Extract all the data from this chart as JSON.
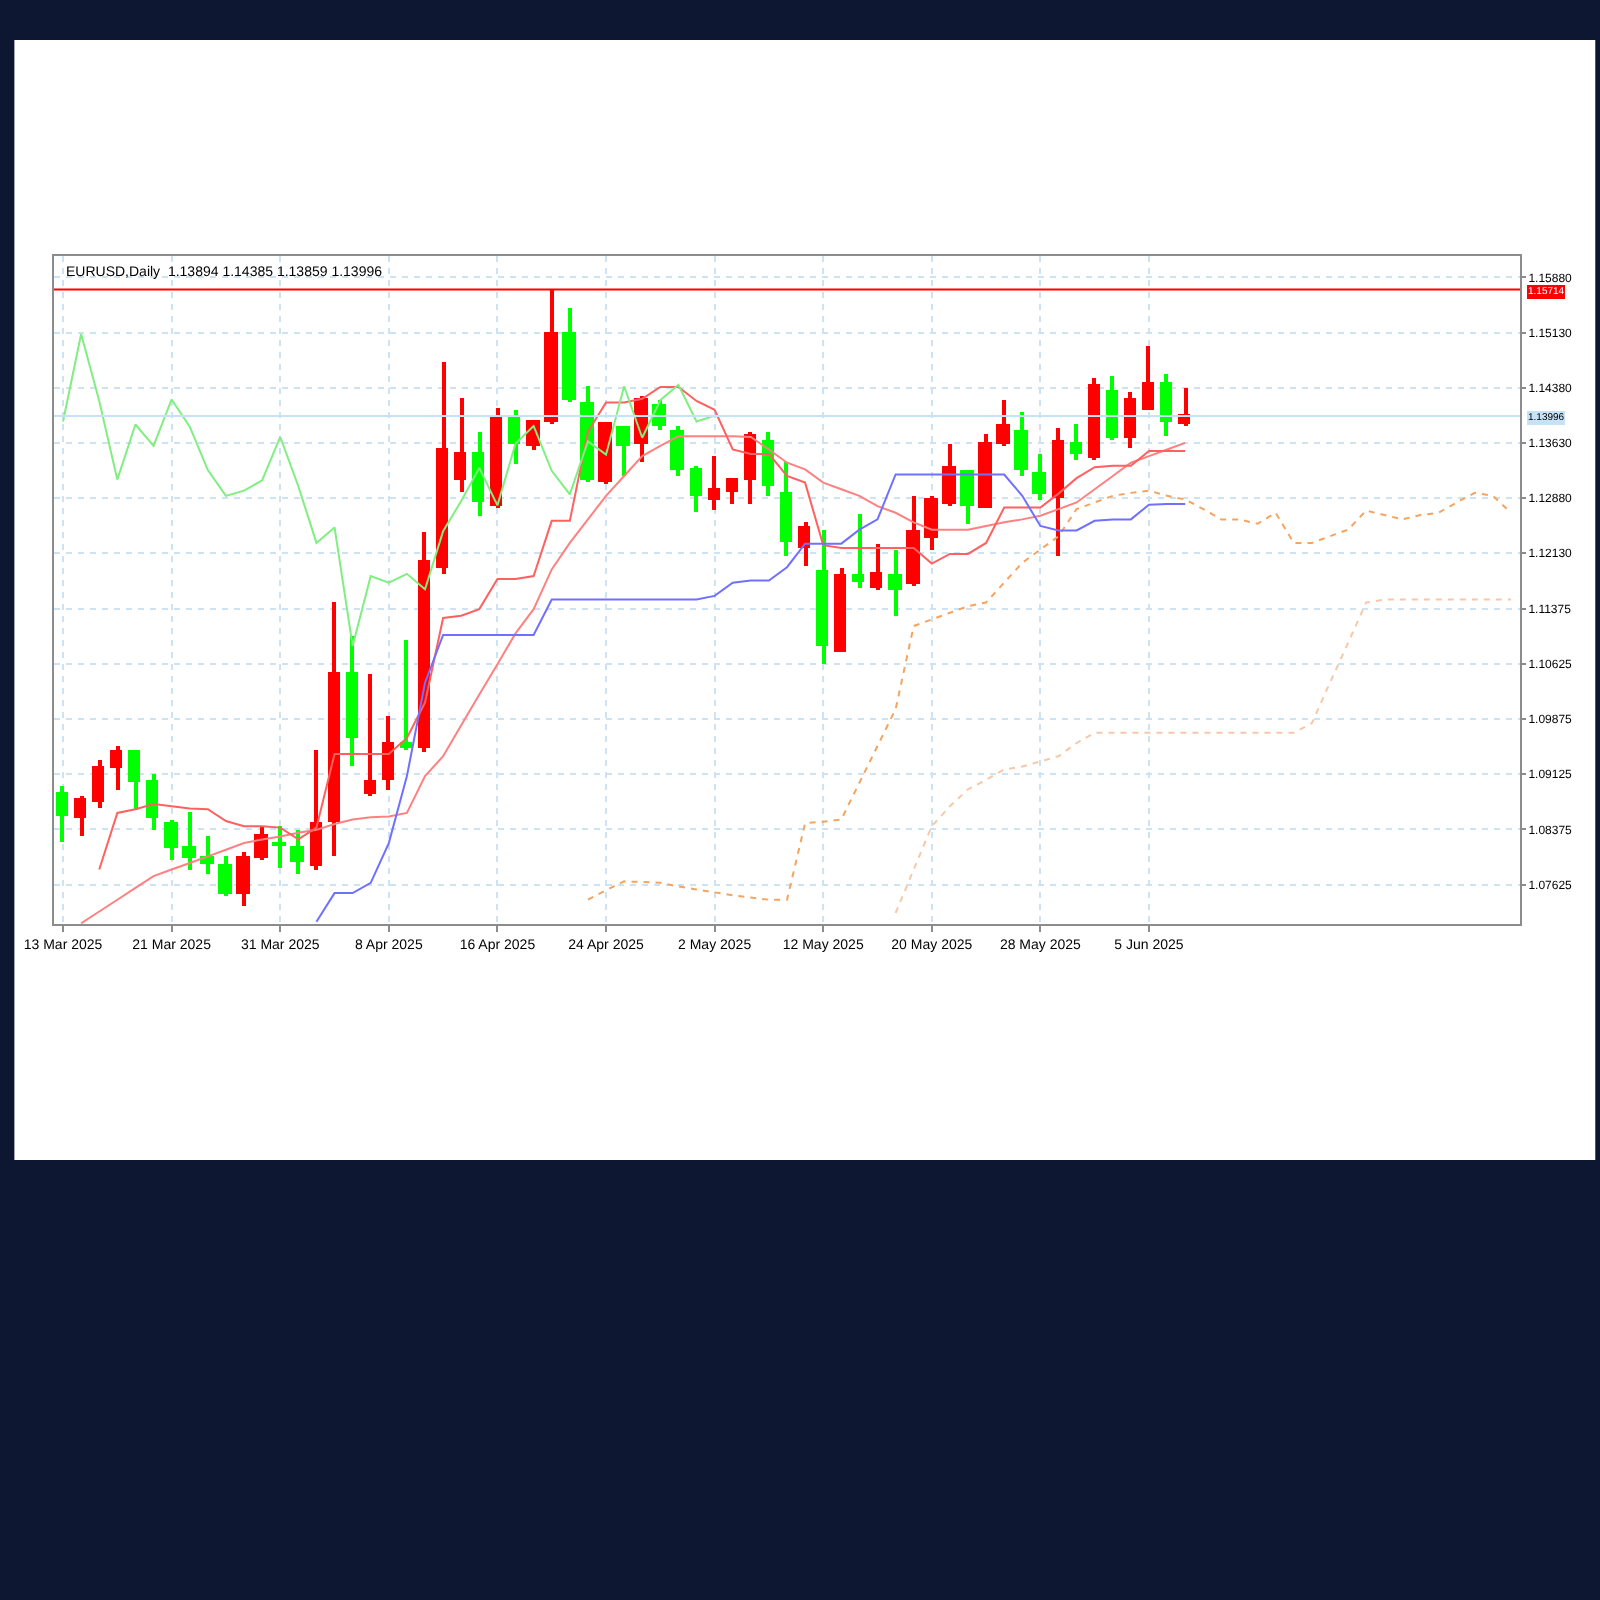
{
  "chart_data": {
    "type": "candlestick",
    "title": "EURUSD,Daily  1.13894 1.14385 1.13859 1.13996",
    "categories": [
      "13 Mar 2025",
      null,
      null,
      null,
      null,
      null,
      "21 Mar 2025",
      null,
      null,
      null,
      null,
      null,
      "31 Mar 2025",
      null,
      null,
      null,
      null,
      null,
      "8 Apr 2025",
      null,
      null,
      null,
      null,
      null,
      "16 Apr 2025",
      null,
      null,
      null,
      null,
      null,
      "24 Apr 2025",
      null,
      null,
      null,
      null,
      null,
      "2 May 2025",
      null,
      null,
      null,
      null,
      null,
      "12 May 2025",
      null,
      null,
      null,
      null,
      null,
      "20 May 2025",
      null,
      null,
      null,
      null,
      null,
      "28 May 2025",
      null,
      null,
      null,
      null,
      null,
      "5 Jun 2025",
      null,
      null,
      null,
      null,
      null,
      null,
      null,
      null,
      null,
      null,
      null,
      null,
      null,
      null,
      null,
      null,
      null,
      null,
      null,
      null
    ],
    "ohlc": [
      [
        1.0887,
        1.0896,
        1.0821,
        1.0855
      ],
      [
        1.0853,
        1.0883,
        1.0828,
        1.0878
      ],
      [
        1.0875,
        1.0933,
        1.0866,
        1.0921
      ],
      [
        1.0921,
        1.0951,
        1.0892,
        1.0944
      ],
      [
        1.0943,
        1.0946,
        1.0865,
        1.0901
      ],
      [
        1.0901,
        1.0914,
        1.0837,
        1.0854
      ],
      [
        1.0846,
        1.0851,
        1.0797,
        1.0812
      ],
      [
        1.0812,
        1.086,
        1.0783,
        1.0799
      ],
      [
        1.0799,
        1.0828,
        1.0778,
        1.079
      ],
      [
        1.0789,
        1.0801,
        1.0747,
        1.075
      ],
      [
        1.0751,
        1.0806,
        1.0733,
        1.0799
      ],
      [
        1.08,
        1.0842,
        1.0797,
        1.0828
      ],
      [
        1.0819,
        1.0842,
        1.0785,
        1.0815
      ],
      [
        1.0813,
        1.0837,
        1.0778,
        1.0792
      ],
      [
        1.0789,
        1.0946,
        1.0783,
        1.0844
      ],
      [
        1.0848,
        1.1146,
        1.0801,
        1.105
      ],
      [
        1.105,
        1.11,
        1.0923,
        1.0962
      ],
      [
        1.0885,
        1.105,
        1.0883,
        1.0903
      ],
      [
        1.0904,
        1.0992,
        1.0892,
        1.0953
      ],
      [
        1.0953,
        1.1096,
        1.0946,
        1.0949
      ],
      [
        1.0948,
        1.1241,
        1.0942,
        1.12
      ],
      [
        1.1194,
        1.1472,
        1.1184,
        1.1354
      ],
      [
        1.1313,
        1.1424,
        1.1295,
        1.1348
      ],
      [
        1.1348,
        1.1379,
        1.1264,
        1.1282
      ],
      [
        1.1277,
        1.1411,
        1.1275,
        1.1397
      ],
      [
        1.1397,
        1.1409,
        1.1333,
        1.1361
      ],
      [
        1.136,
        1.1395,
        1.1354,
        1.1392
      ],
      [
        1.1392,
        1.1571,
        1.139,
        1.1511
      ],
      [
        1.1511,
        1.1547,
        1.1418,
        1.142
      ],
      [
        1.1415,
        1.1439,
        1.1309,
        1.1313
      ],
      [
        1.1309,
        1.1392,
        1.1306,
        1.1388
      ],
      [
        1.1382,
        1.1383,
        1.1318,
        1.1359
      ],
      [
        1.1361,
        1.1427,
        1.1336,
        1.1422
      ],
      [
        1.1414,
        1.1422,
        1.138,
        1.1385
      ],
      [
        1.1379,
        1.1386,
        1.1318,
        1.1326
      ],
      [
        1.1327,
        1.1332,
        1.1268,
        1.1291
      ],
      [
        1.1284,
        1.1345,
        1.1273,
        1.1298
      ],
      [
        1.1297,
        1.1313,
        1.128,
        1.1312
      ],
      [
        1.1313,
        1.1377,
        1.128,
        1.1371
      ],
      [
        1.1363,
        1.1377,
        1.1291,
        1.1304
      ],
      [
        1.1294,
        1.1336,
        1.1209,
        1.1227
      ],
      [
        1.1221,
        1.1255,
        1.1196,
        1.1248
      ],
      [
        1.1188,
        1.1244,
        1.1062,
        1.1087
      ],
      [
        1.1079,
        1.1194,
        1.1079,
        1.1182
      ],
      [
        1.1182,
        1.1265,
        1.1166,
        1.1173
      ],
      [
        1.1166,
        1.1225,
        1.1164,
        1.1185
      ],
      [
        1.1182,
        1.1218,
        1.1129,
        1.1164
      ],
      [
        1.1171,
        1.1291,
        1.1168,
        1.1243
      ],
      [
        1.1234,
        1.1291,
        1.1218,
        1.1284
      ],
      [
        1.128,
        1.1362,
        1.1277,
        1.1329
      ],
      [
        1.1323,
        1.1327,
        1.1253,
        1.1278
      ],
      [
        1.1275,
        1.1375,
        1.1275,
        1.1362
      ],
      [
        1.1361,
        1.142,
        1.1359,
        1.1386
      ],
      [
        1.1379,
        1.1406,
        1.1318,
        1.1325
      ],
      [
        1.1321,
        1.1347,
        1.1284,
        1.1293
      ],
      [
        1.1289,
        1.1382,
        1.1209,
        1.1365
      ],
      [
        1.1362,
        1.1389,
        1.1341,
        1.1347
      ],
      [
        1.1343,
        1.145,
        1.1341,
        1.144
      ],
      [
        1.1431,
        1.1454,
        1.1368,
        1.137
      ],
      [
        1.137,
        1.1431,
        1.1356,
        1.1421
      ],
      [
        1.1409,
        1.1495,
        1.1407,
        1.1442
      ],
      [
        1.1442,
        1.1456,
        1.1371,
        1.1392
      ],
      [
        1.13894,
        1.14385,
        1.13859,
        1.13996
      ],
      null,
      null,
      null,
      null,
      null,
      null,
      null,
      null,
      null,
      null,
      null,
      null,
      null,
      null,
      null,
      null,
      null,
      null
    ],
    "colors": [
      "#00ff00",
      "#ff0000",
      "#ff0000",
      "#ff0000",
      "#00ff00",
      "#00ff00",
      "#00ff00",
      "#00ff00",
      "#00ff00",
      "#00ff00",
      "#ff0000",
      "#ff0000",
      "#00ff00",
      "#00ff00",
      "#ff0000",
      "#ff0000",
      "#00ff00",
      "#ff0000",
      "#ff0000",
      "#00ff00",
      "#ff0000",
      "#ff0000",
      "#ff0000",
      "#00ff00",
      "#ff0000",
      "#00ff00",
      "#ff0000",
      "#ff0000",
      "#00ff00",
      "#00ff00",
      "#ff0000",
      "#00ff00",
      "#ff0000",
      "#00ff00",
      "#00ff00",
      "#00ff00",
      "#ff0000",
      "#ff0000",
      "#ff0000",
      "#00ff00",
      "#00ff00",
      "#ff0000",
      "#00ff00",
      "#ff0000",
      "#00ff00",
      "#ff0000",
      "#00ff00",
      "#ff0000",
      "#ff0000",
      "#ff0000",
      "#00ff00",
      "#ff0000",
      "#ff0000",
      "#00ff00",
      "#00ff00",
      "#ff0000",
      "#00ff00",
      "#ff0000",
      "#00ff00",
      "#ff0000",
      "#ff0000",
      "#00ff00",
      "#ff0000",
      null,
      null,
      null,
      null,
      null,
      null,
      null,
      null,
      null,
      null,
      null,
      null,
      null,
      null,
      null,
      null,
      null,
      null
    ],
    "series": [
      {
        "type": "line",
        "color": "#f4a460",
        "line_style": "dotted",
        "values": [
          null,
          null,
          null,
          null,
          null,
          null,
          null,
          null,
          null,
          null,
          null,
          null,
          null,
          null,
          null,
          null,
          null,
          null,
          null,
          null,
          null,
          null,
          null,
          null,
          null,
          null,
          null,
          null,
          null,
          1.0742,
          1.0755,
          1.0767,
          1.0766,
          1.0765,
          1.076,
          1.0756,
          1.0752,
          1.0748,
          1.0745,
          1.0742,
          1.0742,
          1.0846,
          1.0848,
          1.0851,
          1.0901,
          1.0951,
          1.1001,
          1.1114,
          1.1123,
          1.1132,
          1.1141,
          1.1146,
          1.1173,
          1.12,
          1.1218,
          1.1236,
          1.1273,
          1.1282,
          1.1291,
          1.1295,
          1.1298,
          1.1291,
          1.1286,
          1.1273,
          1.1259,
          1.1259,
          1.1253,
          1.1268,
          1.1227,
          1.1227,
          1.1236,
          1.1245,
          1.1271,
          1.1265,
          1.1259,
          1.1265,
          1.1268,
          1.1282,
          1.1295,
          1.1291,
          1.1268
        ]
      },
      {
        "type": "line",
        "color": "#f7c8a8",
        "line_style": "dotted",
        "values": [
          null,
          null,
          null,
          null,
          null,
          null,
          null,
          null,
          null,
          null,
          null,
          null,
          null,
          null,
          null,
          null,
          null,
          null,
          null,
          null,
          null,
          null,
          null,
          null,
          null,
          null,
          null,
          null,
          null,
          null,
          null,
          null,
          null,
          null,
          null,
          null,
          null,
          null,
          null,
          null,
          null,
          null,
          null,
          null,
          null,
          null,
          1.0724,
          1.0783,
          1.0842,
          1.0869,
          1.0892,
          1.0905,
          1.0919,
          1.0923,
          1.093,
          1.0937,
          1.0955,
          1.0969,
          1.0969,
          1.0969,
          1.0969,
          1.0969,
          1.0969,
          1.0969,
          1.0969,
          1.0969,
          1.0969,
          1.0969,
          1.0969,
          1.0982,
          1.1037,
          1.1091,
          1.1146,
          1.115,
          1.115,
          1.115,
          1.115,
          1.115,
          1.115,
          1.115,
          1.115
        ]
      },
      {
        "type": "line",
        "color": "#ff8080",
        "values": [
          null,
          1.071,
          1.0726,
          1.0742,
          1.0758,
          1.0774,
          1.0783,
          1.0792,
          1.0801,
          1.081,
          1.0819,
          1.0824,
          1.0828,
          1.0833,
          1.0837,
          1.0845,
          1.0851,
          1.0854,
          1.0855,
          1.086,
          1.091,
          1.0937,
          1.0979,
          1.1021,
          1.1062,
          1.1104,
          1.1137,
          1.1191,
          1.1227,
          1.1259,
          1.1291,
          1.1318,
          1.1345,
          1.1359,
          1.1372,
          1.1372,
          1.1372,
          1.1372,
          1.1371,
          1.1354,
          1.1336,
          1.1327,
          1.1309,
          1.13,
          1.1291,
          1.1277,
          1.1268,
          1.1255,
          1.1245,
          1.1245,
          1.1245,
          1.125,
          1.1255,
          1.1259,
          1.1264,
          1.1273,
          1.1282,
          1.13,
          1.1318,
          1.1336,
          1.1345,
          1.1354,
          1.1363,
          null,
          null,
          null,
          null,
          null,
          null,
          null,
          null,
          null,
          null,
          null,
          null,
          null,
          null,
          null,
          null,
          null,
          null
        ]
      },
      {
        "type": "line",
        "color": "#ff6060",
        "values": [
          null,
          null,
          1.0783,
          1.086,
          1.0865,
          1.0872,
          1.0869,
          1.0866,
          1.0865,
          1.0849,
          1.0842,
          1.0842,
          1.084,
          1.0824,
          1.084,
          1.094,
          1.094,
          1.094,
          1.094,
          1.0962,
          1.101,
          1.1125,
          1.1128,
          1.1137,
          1.1178,
          1.1178,
          1.1182,
          1.1257,
          1.1257,
          1.1378,
          1.1418,
          1.1418,
          1.1423,
          1.1439,
          1.1439,
          1.142,
          1.1408,
          1.1354,
          1.1348,
          1.1348,
          1.1318,
          1.1309,
          1.1224,
          1.122,
          1.122,
          1.122,
          1.122,
          1.122,
          1.1199,
          1.1212,
          1.1212,
          1.1227,
          1.1275,
          1.1275,
          1.1275,
          1.1294,
          1.1315,
          1.133,
          1.1332,
          1.1332,
          1.1352,
          1.1352,
          1.1352,
          null,
          null,
          null,
          null,
          null,
          null,
          null,
          null,
          null,
          null,
          null,
          null,
          null,
          null,
          null,
          null,
          null,
          null
        ]
      },
      {
        "type": "line",
        "color": "#7070ff",
        "values": [
          null,
          null,
          null,
          null,
          null,
          null,
          null,
          null,
          null,
          null,
          null,
          null,
          null,
          null,
          1.0712,
          1.0751,
          1.0751,
          1.0765,
          1.0819,
          1.091,
          1.1037,
          1.1102,
          1.1102,
          1.1102,
          1.1102,
          1.1102,
          1.1102,
          1.115,
          1.115,
          1.115,
          1.115,
          1.115,
          1.115,
          1.115,
          1.115,
          1.115,
          1.1155,
          1.1173,
          1.1176,
          1.1176,
          1.1194,
          1.1226,
          1.1226,
          1.1226,
          1.1245,
          1.1259,
          1.132,
          1.132,
          1.132,
          1.132,
          1.132,
          1.132,
          1.132,
          1.1291,
          1.125,
          1.1244,
          1.1244,
          1.1257,
          1.1259,
          1.1259,
          1.1279,
          1.128,
          1.128,
          null,
          null,
          null,
          null,
          null,
          null,
          null,
          null,
          null,
          null,
          null,
          null,
          null,
          null,
          null,
          null,
          null,
          null
        ]
      },
      {
        "type": "line",
        "color": "#80ee80",
        "values": [
          1.1392,
          1.1511,
          1.142,
          1.1313,
          1.1388,
          1.1359,
          1.1422,
          1.1385,
          1.1326,
          1.1291,
          1.1298,
          1.1312,
          1.1371,
          1.1304,
          1.1227,
          1.1248,
          1.1087,
          1.1182,
          1.1173,
          1.1185,
          1.1164,
          1.1243,
          1.1284,
          1.1329,
          1.1278,
          1.1362,
          1.1386,
          1.1325,
          1.1293,
          1.1365,
          1.1347,
          1.144,
          1.137,
          1.1421,
          1.1442,
          1.1392,
          1.14,
          null,
          null,
          null,
          null,
          null,
          null,
          null,
          null,
          null,
          null,
          null,
          null,
          null,
          null,
          null,
          null,
          null,
          null,
          null,
          null,
          null,
          null,
          null,
          null,
          null,
          null,
          null,
          null,
          null,
          null,
          null,
          null,
          null,
          null,
          null,
          null,
          null,
          null,
          null,
          null,
          null,
          null,
          null,
          null
        ]
      }
    ],
    "ylim": [
      1.0709,
      1.1617
    ],
    "yticks": [
      {
        "value": 1.1588,
        "label": "1.15880"
      },
      {
        "value": 1.1513,
        "label": "1.15130"
      },
      {
        "value": 1.1438,
        "label": "1.14380"
      },
      {
        "value": 1.1363,
        "label": "1.13630"
      },
      {
        "value": 1.1288,
        "label": "1.12880"
      },
      {
        "value": 1.1213,
        "label": "1.12130"
      },
      1.11375,
      1.10625,
      1.09875,
      1.09125,
      1.08375,
      1.07625
    ],
    "ref_lines": [
      {
        "axis": "y",
        "value": 1.15714,
        "label": "1.15714",
        "color": "#ff0000"
      },
      {
        "axis": "y",
        "value": 1.13996,
        "label": "1.13996",
        "color": "#c6e2f6"
      }
    ],
    "grid": true
  }
}
